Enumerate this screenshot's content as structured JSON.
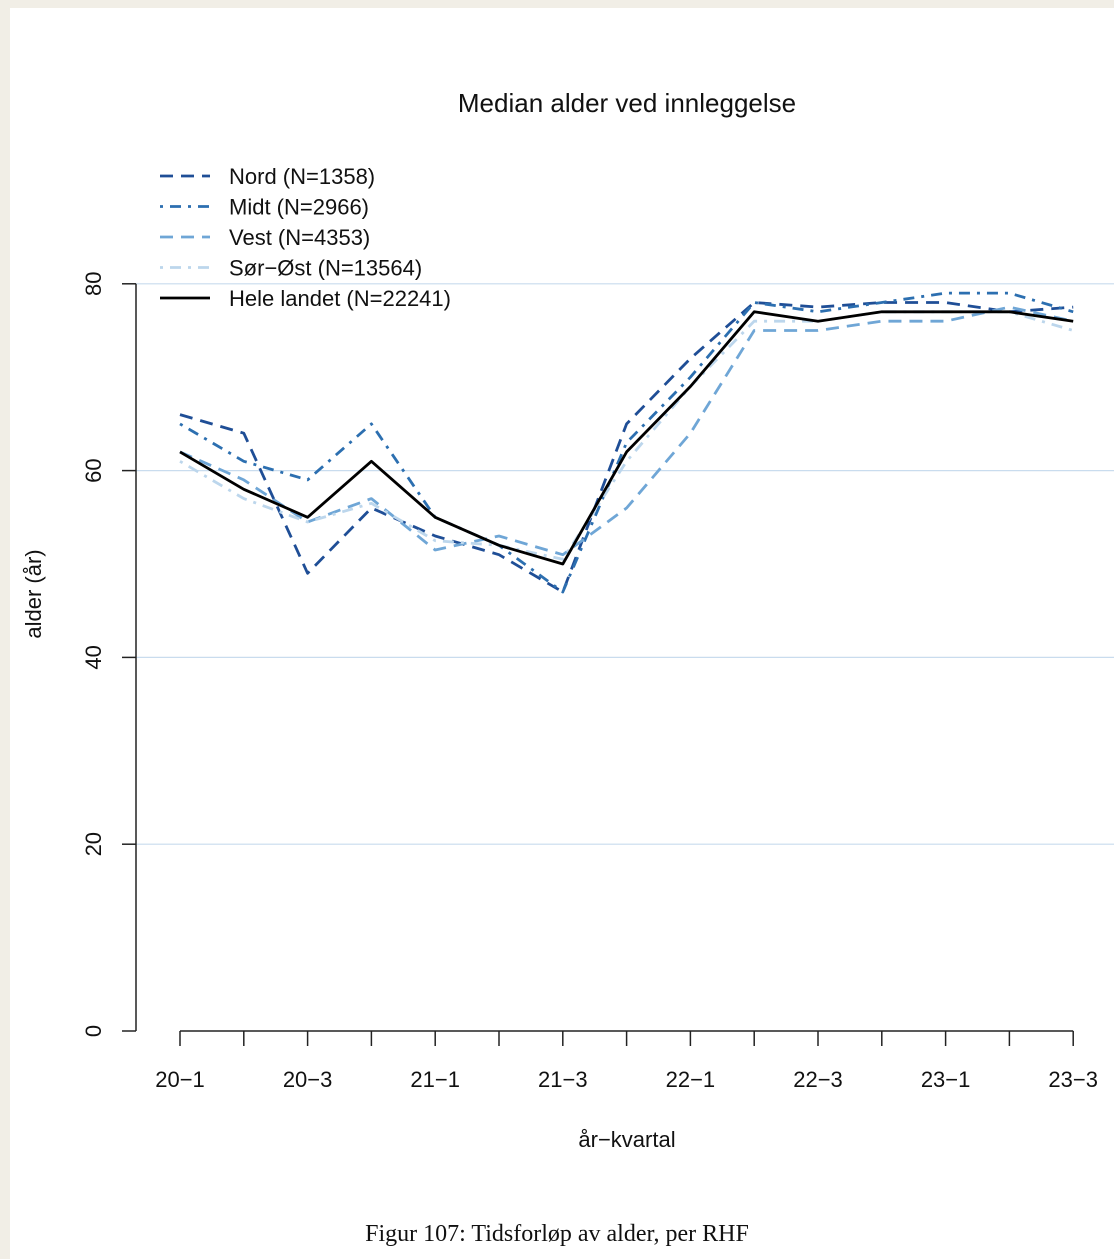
{
  "chart_data": {
    "type": "line",
    "title": "Median alder ved innleggelse",
    "xlabel": "år−kvartal",
    "ylabel": "alder (år)",
    "ylim": [
      0,
      80
    ],
    "yticks": [
      0,
      20,
      40,
      60,
      80
    ],
    "grid": "horizontal",
    "legend_position": "top-left",
    "categories": [
      "20−1",
      "20−2",
      "20−3",
      "20−4",
      "21−1",
      "21−2",
      "21−3",
      "21−4",
      "22−1",
      "22−2",
      "22−3",
      "22−4",
      "23−1",
      "23−2",
      "23−3"
    ],
    "tick_labels": [
      "20−1",
      "20−3",
      "21−1",
      "21−3",
      "22−1",
      "22−3",
      "23−1",
      "23−3"
    ],
    "series": [
      {
        "name": "Nord (N=1358)",
        "color": "#1f4e96",
        "dash": "dashed",
        "values": [
          66,
          64,
          49,
          56,
          53,
          51,
          47,
          65,
          72,
          78,
          77.5,
          78,
          78,
          77,
          77.5
        ]
      },
      {
        "name": "Midt (N=2966)",
        "color": "#2c6fb0",
        "dash": "dotdash",
        "values": [
          65,
          61,
          59,
          65,
          55,
          52,
          47,
          63,
          70,
          78,
          77,
          78,
          79,
          79,
          77
        ]
      },
      {
        "name": "Vest (N=4353)",
        "color": "#6fa6d6",
        "dash": "dashed",
        "values": [
          62,
          59,
          54.5,
          57,
          51.5,
          53,
          51,
          56,
          64,
          75,
          75,
          76,
          76,
          77.5,
          76
        ]
      },
      {
        "name": "Sør−Øst (N=13564)",
        "color": "#bcd6ec",
        "dash": "dotdash",
        "values": [
          61,
          57,
          54.5,
          56.5,
          52.5,
          52,
          50.5,
          61,
          69,
          76,
          76,
          77,
          77,
          77,
          75
        ]
      },
      {
        "name": "Hele landet (N=22241)",
        "color": "#000000",
        "dash": "solid",
        "values": [
          62,
          58,
          55,
          61,
          55,
          52,
          50,
          62,
          69,
          77,
          76,
          77,
          77,
          77,
          76
        ]
      }
    ]
  },
  "caption": "Figur 107: Tidsforløp av alder, per RHF"
}
